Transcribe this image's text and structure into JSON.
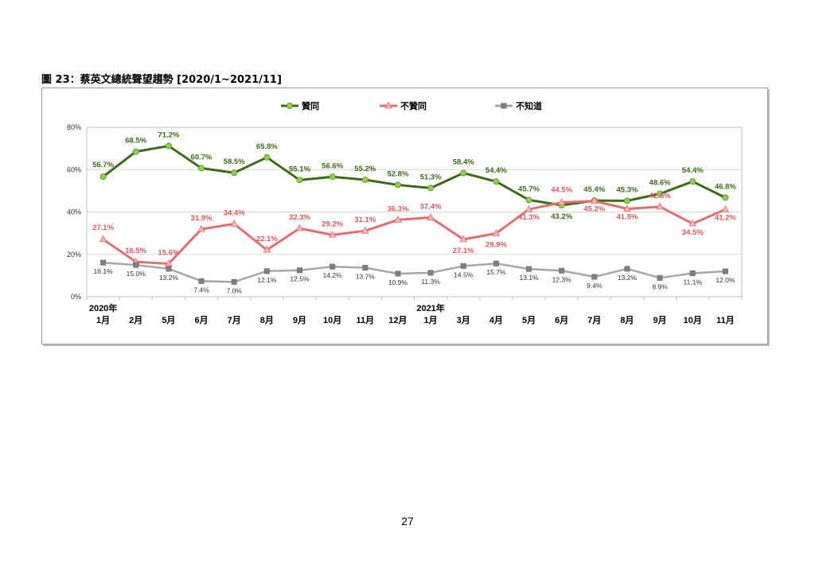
{
  "figure_title": "圖 23：蔡英文總統聲望趨勢  [2020/1~2021/11]",
  "page_number": "27",
  "chart_data": {
    "type": "line",
    "title": "圖 23：蔡英文總統聲望趨勢  [2020/1~2021/11]",
    "xlabel": "",
    "ylabel": "",
    "ylim": [
      0,
      80
    ],
    "yticks": [
      "0%",
      "20%",
      "40%",
      "60%",
      "80%"
    ],
    "grid": true,
    "legend_position": "top",
    "x_year_labels": [
      "2020年",
      "",
      "",
      "",
      "",
      "",
      "",
      "",
      "",
      "",
      "2021年",
      "",
      "",
      "",
      "",
      "",
      "",
      "",
      "",
      ""
    ],
    "categories": [
      "1月",
      "2月",
      "5月",
      "6月",
      "7月",
      "8月",
      "9月",
      "10月",
      "11月",
      "12月",
      "1月",
      "3月",
      "4月",
      "5月",
      "6月",
      "7月",
      "8月",
      "9月",
      "10月",
      "11月"
    ],
    "series": [
      {
        "name": "贊同",
        "color": "#3d6b1a",
        "marker_color": "#8fd14f",
        "marker": "circle",
        "values": [
          56.7,
          68.5,
          71.2,
          60.7,
          58.5,
          65.8,
          55.1,
          56.6,
          55.2,
          52.8,
          51.3,
          58.4,
          54.4,
          45.7,
          43.2,
          45.4,
          45.3,
          48.6,
          54.4,
          46.8
        ],
        "labels": [
          "56.7%",
          "68.5%",
          "71.2%",
          "60.7%",
          "58.5%",
          "65.8%",
          "55.1%",
          "56.6%",
          "55.2%",
          "52.8%",
          "51.3%",
          "58.4%",
          "54.4%",
          "45.7%",
          "43.2%",
          "45.4%",
          "45.3%",
          "48.6%",
          "54.4%",
          "46.8%"
        ]
      },
      {
        "name": "不贊同",
        "color": "#e07070",
        "marker_color": "#f4b6b6",
        "marker": "triangle",
        "values": [
          27.1,
          16.5,
          15.6,
          31.9,
          34.4,
          22.1,
          32.3,
          29.2,
          31.1,
          36.3,
          37.4,
          27.1,
          29.9,
          41.3,
          44.5,
          45.2,
          41.5,
          42.5,
          34.5,
          41.2
        ],
        "labels": [
          "27.1%",
          "16.5%",
          "15.6%",
          "31.9%",
          "34.4%",
          "22.1%",
          "32.3%",
          "29.2%",
          "31.1%",
          "36.3%",
          "37.4%",
          "27.1%",
          "29.9%",
          "41.3%",
          "44.5%",
          "45.2%",
          "41.5%",
          "42.5%",
          "34.5%",
          "41.2%"
        ]
      },
      {
        "name": "不知道",
        "color": "#a6a6a6",
        "marker_color": "#7f7f7f",
        "marker": "square",
        "values": [
          16.1,
          15.0,
          13.2,
          7.4,
          7.0,
          12.1,
          12.5,
          14.2,
          13.7,
          10.9,
          11.3,
          14.5,
          15.7,
          13.1,
          12.3,
          9.4,
          13.2,
          8.9,
          11.1,
          12.0
        ],
        "labels": [
          "16.1%",
          "15.0%",
          "13.2%",
          "7.4%",
          "7.0%",
          "12.1%",
          "12.5%",
          "14.2%",
          "13.7%",
          "10.9%",
          "11.3%",
          "14.5%",
          "15.7%",
          "13.1%",
          "12.3%",
          "9.4%",
          "13.2%",
          "8.9%",
          "11.1%",
          "12.0%"
        ]
      }
    ]
  }
}
